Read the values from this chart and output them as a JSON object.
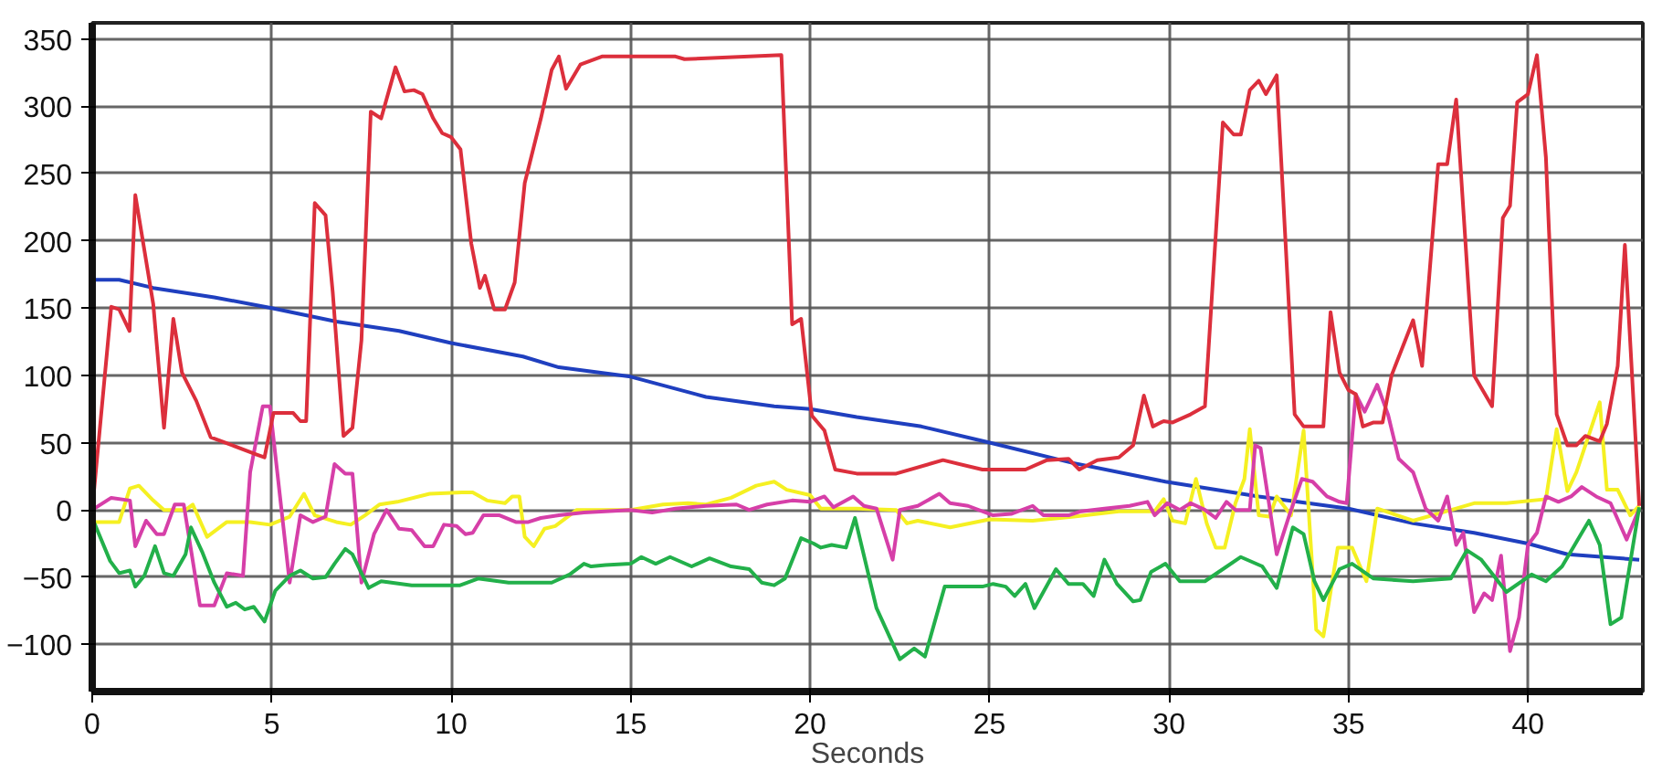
{
  "chart_data": {
    "type": "line",
    "xlabel": "Seconds",
    "xlim": [
      0,
      43.2
    ],
    "ylim": [
      -135,
      362
    ],
    "xticks": [
      0,
      5,
      10,
      15,
      20,
      25,
      30,
      35,
      40
    ],
    "yticks": [
      -100,
      -50,
      0,
      50,
      100,
      150,
      200,
      250,
      300,
      350
    ],
    "grid": true,
    "marker": "none",
    "line_style": "solid",
    "series": [
      {
        "color": "#1f3fbf",
        "x": [
          0,
          0.75,
          1.7,
          3.4,
          5,
          6.8,
          8.55,
          10,
          12,
          13,
          15,
          17.1,
          19,
          20,
          21.3,
          23.1,
          25,
          27.3,
          29.9,
          32.5,
          35,
          36.8,
          38.5,
          40,
          41.1,
          43.1
        ],
        "values": [
          171,
          171,
          165,
          158,
          150,
          140,
          133,
          124,
          114,
          106,
          99,
          84,
          77,
          75,
          69,
          62,
          50,
          35,
          21,
          10,
          1,
          -10,
          -17,
          -25,
          -33,
          -37
        ]
      },
      {
        "color": "#f5f022",
        "x": [
          0,
          0.75,
          1.05,
          1.3,
          1.7,
          2.0,
          2.6,
          2.8,
          3.2,
          3.75,
          4.4,
          4.95,
          5.5,
          5.9,
          6.2,
          6.8,
          7.2,
          7.6,
          8.0,
          8.5,
          9.4,
          10.3,
          10.6,
          11,
          11.5,
          11.7,
          11.9,
          12.05,
          12.3,
          12.6,
          12.9,
          13.5,
          15,
          15.9,
          16.6,
          17.1,
          17.8,
          18.5,
          19,
          19.35,
          20,
          20.3,
          21.3,
          22.4,
          22.7,
          23,
          23.9,
          25,
          26.2,
          27.35,
          28.6,
          29.6,
          29.85,
          30.1,
          30.45,
          30.75,
          31.05,
          31.3,
          31.55,
          31.85,
          32.1,
          32.25,
          32.5,
          32.8,
          33.0,
          33.4,
          33.75,
          34.1,
          34.3,
          34.7,
          35.1,
          35.5,
          35.8,
          36.8,
          38,
          38.5,
          39.4,
          40.5,
          40.8,
          41.1,
          41.35,
          42,
          42.2,
          42.5,
          42.85,
          43.1
        ],
        "values": [
          -9,
          -9,
          16,
          18,
          7,
          0,
          0,
          4,
          -20,
          -9,
          -9,
          -11,
          -5,
          12,
          -4,
          -9,
          -11,
          -4,
          4,
          6,
          12,
          13,
          13,
          7,
          5,
          10,
          10,
          -20,
          -27,
          -14,
          -12,
          0,
          0,
          4,
          5,
          4,
          9,
          18,
          21,
          15,
          11,
          1,
          1,
          0,
          -10,
          -8,
          -13,
          -7,
          -8,
          -5,
          -1,
          -1,
          8,
          -8,
          -10,
          23,
          -10,
          -28,
          -28,
          5,
          23,
          60,
          -4,
          -5,
          10,
          -4,
          59,
          -89,
          -94,
          -28,
          -28,
          -53,
          1,
          -8,
          1,
          5,
          5,
          8,
          60,
          14,
          28,
          80,
          15,
          15,
          -4,
          3
        ]
      },
      {
        "color": "#d63fa8",
        "x": [
          0,
          0.53,
          1.05,
          1.2,
          1.5,
          1.8,
          2.0,
          2.3,
          2.55,
          3.0,
          3.4,
          3.75,
          4.2,
          4.4,
          4.75,
          4.95,
          5.5,
          5.8,
          6.15,
          6.5,
          6.75,
          7.05,
          7.25,
          7.5,
          7.85,
          8.2,
          8.55,
          8.9,
          9.26,
          9.5,
          9.8,
          10.15,
          10.4,
          10.6,
          10.9,
          11.35,
          11.8,
          12.15,
          12.5,
          13.0,
          13.7,
          15,
          15.6,
          16.25,
          17.1,
          17.95,
          18.3,
          18.8,
          19.5,
          20,
          20.4,
          20.65,
          21.2,
          21.5,
          21.85,
          22.3,
          22.5,
          23,
          23.6,
          23.9,
          24.4,
          25.1,
          25.6,
          26.2,
          26.5,
          27.2,
          27.55,
          28.2,
          28.9,
          29.4,
          29.6,
          29.95,
          30.3,
          30.6,
          31.0,
          31.3,
          31.6,
          31.85,
          32.25,
          32.4,
          32.55,
          33,
          33.35,
          33.7,
          34.0,
          34.4,
          34.75,
          34.95,
          35.2,
          35.45,
          35.8,
          36.1,
          36.4,
          36.8,
          37.15,
          37.5,
          37.75,
          38,
          38.2,
          38.5,
          38.78,
          39.0,
          39.25,
          39.5,
          39.75,
          40,
          40.25,
          40.5,
          40.85,
          41.2,
          41.5,
          41.9,
          42.3,
          42.75,
          43.1
        ],
        "values": [
          0,
          9,
          7,
          -27,
          -8,
          -18,
          -18,
          4,
          4,
          -71,
          -71,
          -47,
          -49,
          28,
          77,
          77,
          -54,
          -4,
          -9,
          -5,
          34,
          27,
          27,
          -54,
          -18,
          0,
          -14,
          -15,
          -27,
          -27,
          -11,
          -12,
          -18,
          -17,
          -4,
          -4,
          -9,
          -9,
          -6,
          -4,
          -2,
          0,
          -2,
          1,
          3,
          4,
          0,
          4,
          7,
          6,
          10,
          2,
          10,
          3,
          1,
          -37,
          0,
          3,
          12,
          5,
          3,
          -4,
          -3,
          3,
          -4,
          -4,
          -1,
          1,
          3,
          6,
          -4,
          5,
          0,
          5,
          0,
          -6,
          6,
          0,
          0,
          48,
          46,
          -33,
          -4,
          23,
          21,
          10,
          6,
          5,
          86,
          73,
          93,
          71,
          38,
          28,
          1,
          -8,
          10,
          -26,
          -17,
          -76,
          -62,
          -67,
          -34,
          -105,
          -80,
          -26,
          -17,
          10,
          6,
          10,
          17,
          10,
          5,
          -22,
          1
        ]
      },
      {
        "color": "#22b04a",
        "x": [
          0,
          0.5,
          0.75,
          1.05,
          1.2,
          1.45,
          1.75,
          2.0,
          2.26,
          2.6,
          2.75,
          3.06,
          3.4,
          3.75,
          4.0,
          4.25,
          4.5,
          4.8,
          5.1,
          5.5,
          5.8,
          6.15,
          6.5,
          6.75,
          7.05,
          7.25,
          7.7,
          8.05,
          8.9,
          10.25,
          10.75,
          11.6,
          12.8,
          13.3,
          13.7,
          13.9,
          14.3,
          15,
          15.3,
          15.7,
          16.1,
          16.7,
          17.2,
          17.8,
          18.3,
          18.65,
          19.0,
          19.3,
          19.75,
          20.1,
          20.3,
          20.6,
          21.0,
          21.25,
          21.85,
          22.5,
          22.9,
          23.2,
          23.75,
          24.8,
          25.1,
          25.45,
          25.7,
          26.0,
          26.25,
          26.85,
          27.2,
          27.6,
          27.9,
          28.2,
          28.55,
          29.0,
          29.2,
          29.5,
          29.9,
          30.3,
          31.0,
          31.5,
          32.0,
          32.6,
          33.0,
          33.45,
          33.75,
          34.05,
          34.3,
          34.75,
          35.1,
          35.7,
          36.8,
          37.85,
          38.3,
          38.7,
          39.4,
          40.1,
          40.5,
          40.95,
          41.5,
          41.7,
          42.0,
          42.3,
          42.6,
          43.1
        ],
        "values": [
          -6,
          -38,
          -47,
          -45,
          -57,
          -49,
          -27,
          -47,
          -49,
          -33,
          -13,
          -31,
          -54,
          -72,
          -69,
          -74,
          -72,
          -83,
          -60,
          -49,
          -45,
          -51,
          -50,
          -40,
          -29,
          -33,
          -58,
          -53,
          -56,
          -56,
          -51,
          -54,
          -54,
          -48,
          -40,
          -42,
          -41,
          -40,
          -35,
          -40,
          -35,
          -42,
          -36,
          -42,
          -44,
          -54,
          -56,
          -51,
          -21,
          -25,
          -28,
          -26,
          -28,
          -6,
          -73,
          -111,
          -103,
          -109,
          -57,
          -57,
          -55,
          -57,
          -64,
          -55,
          -73,
          -44,
          -55,
          -55,
          -64,
          -37,
          -55,
          -68,
          -67,
          -46,
          -40,
          -53,
          -53,
          -44,
          -35,
          -42,
          -58,
          -13,
          -18,
          -53,
          -67,
          -44,
          -40,
          -51,
          -53,
          -51,
          -30,
          -37,
          -61,
          -48,
          -53,
          -42,
          -17,
          -8,
          -26,
          -85,
          -80,
          2
        ]
      },
      {
        "color": "#dc2f3c",
        "x": [
          0,
          0.53,
          0.75,
          1.04,
          1.2,
          1.7,
          2.0,
          2.26,
          2.5,
          2.9,
          3.3,
          3.9,
          4.6,
          4.8,
          5.05,
          5.6,
          5.8,
          5.96,
          6.2,
          6.5,
          6.7,
          7.0,
          7.25,
          7.5,
          7.76,
          8.05,
          8.45,
          8.7,
          8.96,
          9.2,
          9.5,
          9.75,
          10.0,
          10.26,
          10.56,
          10.8,
          10.94,
          11.2,
          11.5,
          11.77,
          12.05,
          12.5,
          12.8,
          13.0,
          13.2,
          13.6,
          14.2,
          16.25,
          16.5,
          19.2,
          19.5,
          19.75,
          20.05,
          20.4,
          20.7,
          21.3,
          22.4,
          23.7,
          24.8,
          26,
          26.6,
          27.2,
          27.5,
          28.0,
          28.6,
          29.0,
          29.3,
          29.55,
          29.85,
          30.1,
          30.6,
          31.0,
          31.5,
          31.8,
          32.0,
          32.25,
          32.5,
          32.7,
          33.0,
          33.5,
          33.75,
          34.3,
          34.5,
          34.75,
          35.0,
          35.2,
          35.4,
          35.7,
          35.95,
          36.2,
          36.8,
          37.05,
          37.5,
          37.75,
          38.0,
          38.5,
          39.0,
          39.3,
          39.5,
          39.7,
          40.0,
          40.25,
          40.5,
          40.8,
          41.1,
          41.35,
          41.6,
          42.0,
          42.2,
          42.5,
          42.7,
          43.1
        ],
        "values": [
          0,
          151,
          149,
          133,
          234,
          153,
          61,
          142,
          102,
          81,
          54,
          48,
          41,
          39,
          72,
          72,
          66,
          66,
          228,
          219,
          162,
          55,
          61,
          126,
          296,
          291,
          329,
          311,
          312,
          309,
          291,
          280,
          277,
          268,
          198,
          165,
          174,
          149,
          149,
          169,
          243,
          291,
          327,
          337,
          313,
          331,
          337,
          337,
          335,
          338,
          138,
          142,
          70,
          59,
          30,
          27,
          27,
          37,
          30,
          30,
          37,
          38,
          30,
          37,
          39,
          48,
          85,
          62,
          66,
          65,
          71,
          77,
          288,
          279,
          279,
          312,
          319,
          309,
          323,
          71,
          62,
          62,
          147,
          102,
          89,
          86,
          62,
          65,
          65,
          100,
          141,
          107,
          257,
          257,
          305,
          100,
          77,
          217,
          226,
          303,
          309,
          338,
          262,
          71,
          48,
          48,
          55,
          51,
          64,
          107,
          197,
          3
        ]
      }
    ]
  }
}
